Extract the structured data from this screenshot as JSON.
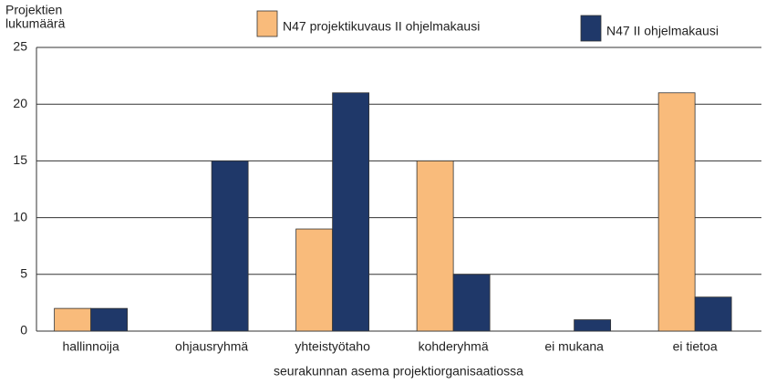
{
  "chart_data": {
    "type": "bar",
    "ylabel": [
      "Projektien",
      "lukumäärä"
    ],
    "xlabel": "seurakunnan asema projektiorganisaatiossa",
    "categories": [
      "hallinnoija",
      "ohjausryhmä",
      "yhteistyötaho",
      "kohderyhmä",
      "ei mukana",
      "ei tietoa"
    ],
    "series": [
      {
        "name": "N47 projektikuvaus II ohjelmakausi",
        "color": "#f9bb7b",
        "values": [
          2,
          0,
          9,
          15,
          0,
          21
        ]
      },
      {
        "name": "N47 II ohjelmakausi",
        "color": "#1f3869",
        "values": [
          2,
          15,
          21,
          5,
          1,
          3
        ]
      }
    ],
    "ylim": [
      0,
      25
    ],
    "yticks": [
      0,
      5,
      10,
      15,
      20,
      25
    ],
    "grid": true
  }
}
